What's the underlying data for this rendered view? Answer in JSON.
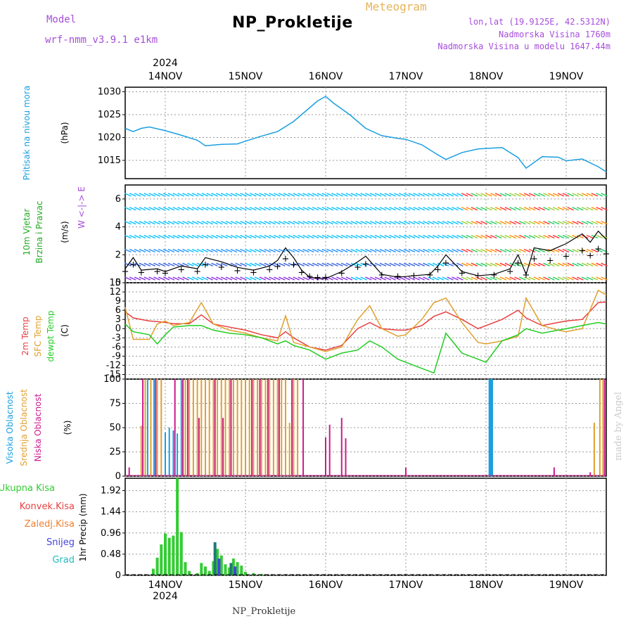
{
  "header": {
    "title": "NP_Prokletije",
    "subtitle": "Meteogram",
    "model_label": "Model",
    "model_name": "wrf-nmm_v3.9.1  e1km",
    "coords": "lon,lat (19.9125E, 42.5312N)",
    "elevation": "Nadmorska Visina 1760m",
    "model_elevation": "Nadmorska Visina u modelu 1647.44m"
  },
  "footer": {
    "station": "NP_Prokletije",
    "credit": "made by Angel"
  },
  "colors": {
    "pressure": "#1a9fe0",
    "wind": "#22aa22",
    "t2m": "#e84040",
    "tsfc": "#e0a030",
    "dew": "#22cc22",
    "cloud_high": "#1a9fe0",
    "cloud_mid": "#e0a030",
    "cloud_low": "#cc1a8c",
    "rain_total": "#33cc33",
    "rain_conv": "#e84040",
    "rain_frozen": "#f08030",
    "snow": "#4444dd",
    "graupel": "#22bbbb"
  },
  "chart_data": [
    {
      "type": "line",
      "panel": "pressure",
      "ylabel_left": "Pritisak na nivou mora",
      "ylabel": "(hPa)",
      "ylim": [
        1011,
        1031
      ],
      "yticks": [
        "1030",
        "1025",
        "1020",
        "1015"
      ],
      "x_dates_top": [
        "14NOV",
        "15NOV",
        "16NOV",
        "17NOV",
        "18NOV",
        "19NOV"
      ],
      "year": "2024",
      "series": [
        {
          "x": [
            13.5,
            13.6,
            13.7,
            13.8,
            14.0,
            14.2,
            14.4,
            14.5,
            14.7,
            14.9,
            15.0,
            15.2,
            15.4,
            15.6,
            15.8,
            15.9,
            16.0,
            16.1,
            16.3,
            16.5,
            16.7,
            16.9,
            17.0,
            17.2,
            17.4,
            17.5,
            17.7,
            17.9,
            18.0,
            18.2,
            18.4,
            18.5,
            18.7,
            18.9,
            19.0,
            19.2,
            19.4,
            19.5
          ],
          "y": [
            1022,
            1021.3,
            1022,
            1022.3,
            1021.5,
            1020.5,
            1019.4,
            1018.2,
            1018.5,
            1018.6,
            1019.2,
            1020.3,
            1021.3,
            1023.5,
            1026.5,
            1028,
            1029,
            1027.5,
            1025,
            1022,
            1020.4,
            1019.8,
            1019.6,
            1018.4,
            1016.2,
            1015.2,
            1016.7,
            1017.5,
            1017.6,
            1017.8,
            1015.6,
            1013.3,
            1015.8,
            1015.7,
            1014.9,
            1015.3,
            1013.6,
            1012.5
          ]
        }
      ]
    },
    {
      "type": "scatter",
      "panel": "wind",
      "ylabel_left": "10m Vjetar",
      "ylabel_left2": "Brzina i Pravac",
      "ylabel": "(m/s)",
      "compass": "W <-|-> E",
      "ylim": [
        0,
        7
      ],
      "yticks": [
        "6",
        "4",
        "2",
        "0"
      ],
      "series": [
        {
          "name": "speed",
          "x": [
            13.5,
            13.6,
            13.7,
            13.9,
            14.0,
            14.2,
            14.4,
            14.5,
            14.7,
            14.9,
            15.1,
            15.3,
            15.4,
            15.5,
            15.6,
            15.7,
            15.8,
            15.9,
            16.0,
            16.2,
            16.4,
            16.5,
            16.7,
            16.9,
            17.1,
            17.3,
            17.4,
            17.5,
            17.7,
            17.9,
            18.1,
            18.3,
            18.4,
            18.5,
            18.6,
            18.8,
            19.0,
            19.2,
            19.3,
            19.4,
            19.5
          ],
          "y": [
            1.0,
            1.8,
            0.9,
            1.0,
            0.8,
            1.2,
            1.0,
            1.8,
            1.5,
            1.1,
            0.9,
            1.2,
            1.6,
            2.5,
            1.8,
            0.9,
            0.4,
            0.3,
            0.3,
            0.8,
            1.5,
            1.9,
            0.6,
            0.4,
            0.5,
            0.6,
            1.2,
            2.0,
            0.8,
            0.5,
            0.6,
            1.0,
            2.0,
            0.6,
            2.5,
            2.3,
            2.8,
            3.5,
            2.9,
            3.7,
            3.1
          ]
        }
      ]
    },
    {
      "type": "line",
      "panel": "temperature",
      "ylabel_left": "2m Temp",
      "ylabel_left2": "SFC Temp",
      "ylabel_left3": "dewpt Temp",
      "ylabel": "(C)",
      "ylim": [
        -16.5,
        15
      ],
      "yticks": [
        "15",
        "12",
        "9",
        "6",
        "3",
        "0",
        "-3",
        "-6",
        "-9",
        "-12",
        "-15"
      ],
      "x": [
        13.5,
        13.6,
        13.8,
        13.9,
        14.0,
        14.1,
        14.3,
        14.45,
        14.6,
        14.8,
        15.0,
        15.2,
        15.4,
        15.5,
        15.6,
        15.8,
        16.0,
        16.2,
        16.4,
        16.55,
        16.7,
        16.9,
        17.0,
        17.2,
        17.35,
        17.5,
        17.7,
        17.9,
        18.0,
        18.2,
        18.4,
        18.5,
        18.7,
        18.9,
        19.0,
        19.2,
        19.4,
        19.5
      ],
      "series": [
        {
          "name": "2m Temp",
          "y": [
            5.5,
            3.5,
            2.5,
            2.3,
            2.0,
            1.6,
            1.6,
            4.5,
            1.5,
            0.5,
            -0.5,
            -2,
            -3,
            -1,
            -3,
            -6,
            -7,
            -5.5,
            0,
            2,
            0,
            -0.5,
            -0.5,
            1,
            4,
            5.5,
            3,
            0,
            1,
            3,
            6,
            3.5,
            1,
            2,
            2.5,
            3,
            8.5,
            8.7
          ]
        },
        {
          "name": "SFC Temp",
          "y": [
            7,
            -3.5,
            -3.5,
            1.5,
            2.5,
            1,
            2,
            8.5,
            1.5,
            -0.5,
            -1.5,
            -3,
            -4,
            4.2,
            -4.5,
            -6,
            -7.5,
            -6,
            3,
            7.5,
            0,
            -2.5,
            -2,
            3,
            8.5,
            10,
            2,
            -4.5,
            -5,
            -4,
            -2.5,
            10,
            1,
            -0.5,
            -1,
            0,
            12.5,
            11
          ]
        },
        {
          "name": "dewpt Temp",
          "y": [
            1.5,
            -1,
            -2,
            -5,
            -2,
            0.5,
            1,
            1,
            -0.5,
            -1.5,
            -2,
            -3,
            -5,
            -4,
            -5.5,
            -7,
            -10,
            -8,
            -7,
            -4,
            -6,
            -10,
            -11,
            -13,
            -14.5,
            -1.5,
            -8,
            -10,
            -11,
            -4,
            -2,
            0,
            -1.5,
            -0.5,
            0,
            1,
            2,
            1.5
          ]
        }
      ]
    },
    {
      "type": "bar",
      "panel": "clouds",
      "ylabel_left": "Visoka Oblacnost",
      "ylabel_left2": "Srednja Oblacnost",
      "ylabel_left3": "Niska Oblacnost",
      "ylabel": "(%)",
      "ylim": [
        0,
        100
      ],
      "yticks": [
        "100",
        "75",
        "50",
        "25",
        "0"
      ],
      "series": [
        {
          "name": "Visoka Oblacnost",
          "x": [
            13.78,
            13.86,
            14.0,
            14.05,
            14.1,
            14.15,
            14.2,
            18.05,
            18.07
          ],
          "values": [
            100,
            100,
            45,
            50,
            47,
            44,
            100,
            100,
            100
          ]
        },
        {
          "name": "Srednja Oblacnost",
          "x": [
            13.7,
            13.75,
            13.82,
            13.9,
            13.95,
            14.25,
            14.3,
            14.35,
            14.4,
            14.45,
            14.5,
            14.55,
            14.6,
            14.65,
            14.7,
            14.75,
            14.8,
            14.85,
            14.9,
            14.95,
            15.0,
            15.05,
            15.1,
            15.15,
            15.2,
            15.25,
            15.3,
            15.35,
            15.4,
            15.45,
            15.5,
            15.55,
            15.6,
            15.65,
            19.35,
            19.42,
            19.46
          ],
          "values": [
            52,
            100,
            100,
            100,
            100,
            100,
            100,
            100,
            100,
            100,
            100,
            100,
            100,
            100,
            100,
            100,
            100,
            100,
            100,
            100,
            100,
            100,
            100,
            100,
            100,
            100,
            100,
            100,
            100,
            100,
            100,
            55,
            100,
            100,
            55,
            100,
            100
          ]
        },
        {
          "name": "Niska Oblacnost",
          "x": [
            13.55,
            13.72,
            13.88,
            14.12,
            14.22,
            14.28,
            14.42,
            14.62,
            14.72,
            14.82,
            15.08,
            15.18,
            15.28,
            15.42,
            15.58,
            15.72,
            16.0,
            16.05,
            16.2,
            16.25,
            17.0,
            18.85,
            19.3,
            19.48
          ],
          "values": [
            9,
            100,
            100,
            100,
            100,
            100,
            60,
            100,
            60,
            100,
            100,
            100,
            100,
            100,
            100,
            100,
            40,
            53,
            60,
            39,
            9,
            9,
            4,
            100
          ]
        }
      ]
    },
    {
      "type": "bar",
      "panel": "precip",
      "ylabel": "1hr Precip (mm)",
      "ylim": [
        0,
        2.2
      ],
      "yticks": [
        "1.92",
        "1.44",
        "0.96",
        "0.48",
        "0"
      ],
      "x_dates_bottom": [
        "14NOV",
        "15NOV",
        "16NOV",
        "17NOV",
        "18NOV",
        "19NOV"
      ],
      "year_bottom": "2024",
      "legend": [
        "Ukupna Kisa",
        "Konvek.Kisa",
        "Zaledj.Kisa",
        "Snijeg",
        "Grad"
      ],
      "series": [
        {
          "name": "Ukupna Kisa",
          "x": [
            13.85,
            13.9,
            13.95,
            14.0,
            14.05,
            14.1,
            14.15,
            14.2,
            14.25,
            14.3,
            14.4,
            14.45,
            14.5,
            14.55,
            14.6,
            14.65,
            14.7,
            14.75,
            14.8,
            14.85,
            14.9,
            14.95,
            15.0,
            15.1,
            15.2
          ],
          "values": [
            0.15,
            0.4,
            0.7,
            0.95,
            0.85,
            0.9,
            2.2,
            0.98,
            0.3,
            0.1,
            0.05,
            0.28,
            0.2,
            0.1,
            0.32,
            0.6,
            0.45,
            0.25,
            0.18,
            0.38,
            0.3,
            0.22,
            0.08,
            0.05,
            0.03
          ]
        },
        {
          "name": "Grad",
          "x": [
            14.62,
            14.82
          ],
          "values": [
            0.75,
            0.28
          ]
        },
        {
          "name": "Snijeg",
          "x": [
            14.67,
            14.87
          ],
          "values": [
            0.38,
            0.2
          ]
        }
      ]
    }
  ]
}
